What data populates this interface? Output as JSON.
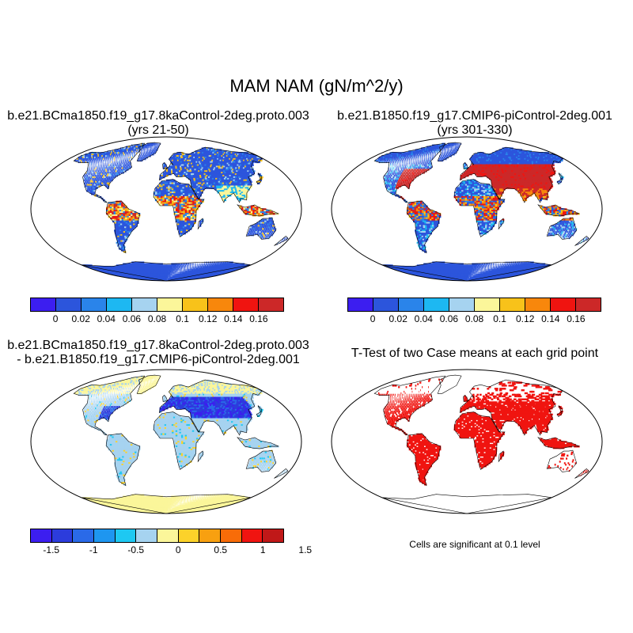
{
  "main_title": "MAM NAM (gN/m^2/y)",
  "panels": [
    {
      "id": "case1",
      "title": "b.e21.BCma1850.f19_g17.8kaControl-2deg.proto.003",
      "subtitle": "(yrs 21-50)"
    },
    {
      "id": "case2",
      "title": "b.e21.B1850.f19_g17.CMIP6-piControl-2deg.001",
      "subtitle": "(yrs 301-330)"
    },
    {
      "id": "diff",
      "title": "b.e21.BCma1850.f19_g17.8kaControl-2deg.proto.003",
      "subtitle": "- b.e21.B1850.f19_g17.CMIP6-piControl-2deg.001"
    },
    {
      "id": "ttest",
      "title": "T-Test of two Case means at each grid point",
      "subtitle": ""
    }
  ],
  "colorbars": {
    "case": {
      "colors": [
        "#3c1ef0",
        "#2c55dc",
        "#2a84ea",
        "#1db8f2",
        "#a6d3f0",
        "#fbf69a",
        "#f8c21a",
        "#f8870c",
        "#f01410",
        "#cc2828"
      ],
      "labels": [
        "0",
        "0.02",
        "0.04",
        "0.06",
        "0.08",
        "0.1",
        "0.12",
        "0.14",
        "0.16"
      ]
    },
    "diff": {
      "colors": [
        "#3c1ef0",
        "#2c3cdc",
        "#2a6ae8",
        "#1e96f0",
        "#1ec8f2",
        "#a6d3f0",
        "#fbf69a",
        "#fcd22a",
        "#f8a010",
        "#f86c08",
        "#f01410",
        "#c01818"
      ],
      "labels": [
        "-1.5",
        "-1",
        "-0.5",
        "0",
        "0.5",
        "1",
        "1.5"
      ]
    }
  },
  "significance_note": "Cells are significant at 0.1 level",
  "map_colors": {
    "ocean": "#ffffff",
    "coast": "#000000",
    "case1_base": "#2c55dc",
    "case2_base": "#2c55dc",
    "case2_high": "#cc2828",
    "diff_base": "#a6d3f0",
    "diff_polar": "#fbf69a",
    "ttest_sig": "#f01410"
  }
}
